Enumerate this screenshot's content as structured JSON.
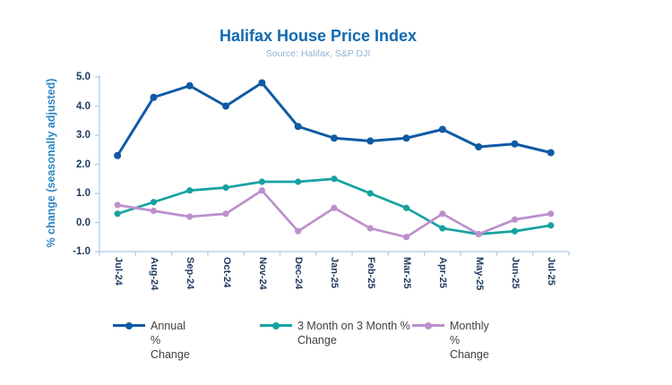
{
  "chart_data": {
    "type": "line",
    "title": "Halifax House Price Index",
    "subtitle": "Source: Halifax, S&P DJI",
    "ylabel": "% change (seasonally adjusted)",
    "xlabel": "",
    "ylim": [
      -1.0,
      5.0
    ],
    "ytick_step": 1.0,
    "yticks": [
      "5.0",
      "4.0",
      "3.0",
      "2.0",
      "1.0",
      "0.0",
      "-1.0"
    ],
    "grid": false,
    "legend_position": "bottom",
    "categories": [
      "Jul-24",
      "Aug-24",
      "Sep-24",
      "Oct-24",
      "Nov-24",
      "Dec-24",
      "Jan-25",
      "Feb-25",
      "Mar-25",
      "Apr-25",
      "May-25",
      "Jun-25",
      "Jul-25"
    ],
    "series": [
      {
        "name": "Annual % Change",
        "color": "#0F5AA5",
        "values": [
          2.3,
          4.3,
          4.7,
          4.0,
          4.8,
          3.3,
          2.9,
          2.8,
          2.9,
          3.2,
          2.6,
          2.7,
          2.4
        ]
      },
      {
        "name": "3 Month on 3 Month % Change",
        "color": "#16A2A0",
        "values": [
          0.3,
          0.7,
          1.1,
          1.2,
          1.4,
          1.4,
          1.5,
          1.0,
          0.5,
          -0.2,
          -0.4,
          -0.3,
          -0.1
        ]
      },
      {
        "name": "Monthly % Change",
        "color": "#BC90CC",
        "values": [
          0.6,
          0.4,
          0.2,
          0.3,
          1.1,
          -0.3,
          0.5,
          -0.2,
          -0.5,
          0.3,
          -0.4,
          0.1,
          0.3
        ]
      }
    ],
    "colors": {
      "title": "#1169B0",
      "subtitle": "#8FB4D8",
      "y_axis_title": "#2E86C4",
      "tick_labels": "#1E3A5F",
      "axis_line": "#B5CFE9",
      "legend_text": "#404040",
      "background": "#FFFFFF"
    }
  }
}
